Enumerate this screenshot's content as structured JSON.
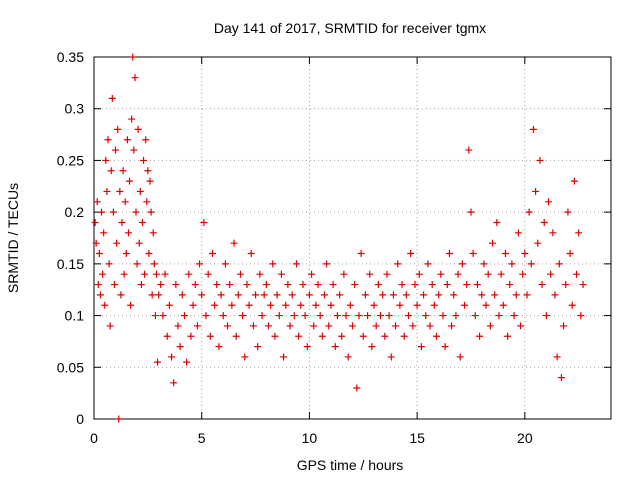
{
  "chart_data": {
    "type": "scatter",
    "title": "Day 141 of 2017, SRMTID for receiver tgmx",
    "xlabel": "GPS time / hours",
    "ylabel": "SRMTID / TECUs",
    "xlim": [
      0,
      24
    ],
    "ylim": [
      0,
      0.35
    ],
    "xticks": [
      0,
      5,
      10,
      15,
      20
    ],
    "xtick_labels": [
      "0",
      "5",
      "10",
      "15",
      "20"
    ],
    "yticks": [
      0,
      0.05,
      0.1,
      0.15,
      0.2,
      0.25,
      0.3,
      0.35
    ],
    "ytick_labels": [
      "0",
      "0.05",
      "0.1",
      "0.15",
      "0.2",
      "0.25",
      "0.3",
      "0.35"
    ],
    "grid": true,
    "marker": "+",
    "color": "#e00000",
    "series": [
      {
        "name": "SRMTID",
        "points": [
          [
            0.05,
            0.19
          ],
          [
            0.1,
            0.17
          ],
          [
            0.15,
            0.21
          ],
          [
            0.2,
            0.13
          ],
          [
            0.25,
            0.16
          ],
          [
            0.3,
            0.12
          ],
          [
            0.35,
            0.2
          ],
          [
            0.4,
            0.14
          ],
          [
            0.45,
            0.18
          ],
          [
            0.5,
            0.11
          ],
          [
            0.55,
            0.25
          ],
          [
            0.6,
            0.22
          ],
          [
            0.65,
            0.27
          ],
          [
            0.7,
            0.15
          ],
          [
            0.75,
            0.09
          ],
          [
            0.8,
            0.24
          ],
          [
            0.85,
            0.31
          ],
          [
            0.9,
            0.2
          ],
          [
            0.95,
            0.13
          ],
          [
            1.0,
            0.26
          ],
          [
            1.05,
            0.17
          ],
          [
            1.1,
            0.28
          ],
          [
            1.15,
            0.0
          ],
          [
            1.2,
            0.22
          ],
          [
            1.25,
            0.12
          ],
          [
            1.3,
            0.19
          ],
          [
            1.35,
            0.24
          ],
          [
            1.4,
            0.14
          ],
          [
            1.45,
            0.21
          ],
          [
            1.5,
            0.16
          ],
          [
            1.55,
            0.27
          ],
          [
            1.6,
            0.18
          ],
          [
            1.65,
            0.23
          ],
          [
            1.7,
            0.11
          ],
          [
            1.75,
            0.29
          ],
          [
            1.8,
            0.35
          ],
          [
            1.85,
            0.26
          ],
          [
            1.9,
            0.33
          ],
          [
            1.95,
            0.2
          ],
          [
            2.0,
            0.15
          ],
          [
            2.05,
            0.28
          ],
          [
            2.1,
            0.17
          ],
          [
            2.15,
            0.22
          ],
          [
            2.2,
            0.13
          ],
          [
            2.25,
            0.19
          ],
          [
            2.3,
            0.25
          ],
          [
            2.35,
            0.14
          ],
          [
            2.4,
            0.27
          ],
          [
            2.45,
            0.21
          ],
          [
            2.5,
            0.24
          ],
          [
            2.55,
            0.16
          ],
          [
            2.6,
            0.23
          ],
          [
            2.65,
            0.2
          ],
          [
            2.7,
            0.12
          ],
          [
            2.75,
            0.18
          ],
          [
            2.8,
            0.15
          ],
          [
            2.85,
            0.1
          ],
          [
            2.9,
            0.14
          ],
          [
            2.95,
            0.055
          ],
          [
            3.0,
            0.12
          ],
          [
            3.1,
            0.13
          ],
          [
            3.2,
            0.1
          ],
          [
            3.3,
            0.14
          ],
          [
            3.4,
            0.08
          ],
          [
            3.5,
            0.11
          ],
          [
            3.6,
            0.06
          ],
          [
            3.7,
            0.035
          ],
          [
            3.8,
            0.13
          ],
          [
            3.9,
            0.09
          ],
          [
            4.0,
            0.07
          ],
          [
            4.1,
            0.12
          ],
          [
            4.2,
            0.1
          ],
          [
            4.3,
            0.055
          ],
          [
            4.4,
            0.14
          ],
          [
            4.5,
            0.08
          ],
          [
            4.6,
            0.11
          ],
          [
            4.7,
            0.13
          ],
          [
            4.8,
            0.09
          ],
          [
            4.9,
            0.15
          ],
          [
            5.0,
            0.12
          ],
          [
            5.1,
            0.19
          ],
          [
            5.2,
            0.1
          ],
          [
            5.3,
            0.14
          ],
          [
            5.4,
            0.08
          ],
          [
            5.5,
            0.16
          ],
          [
            5.6,
            0.11
          ],
          [
            5.7,
            0.13
          ],
          [
            5.8,
            0.07
          ],
          [
            5.9,
            0.12
          ],
          [
            6.0,
            0.1
          ],
          [
            6.1,
            0.15
          ],
          [
            6.2,
            0.09
          ],
          [
            6.3,
            0.13
          ],
          [
            6.4,
            0.11
          ],
          [
            6.5,
            0.17
          ],
          [
            6.6,
            0.08
          ],
          [
            6.7,
            0.12
          ],
          [
            6.8,
            0.14
          ],
          [
            6.9,
            0.1
          ],
          [
            7.0,
            0.06
          ],
          [
            7.1,
            0.13
          ],
          [
            7.2,
            0.11
          ],
          [
            7.3,
            0.16
          ],
          [
            7.4,
            0.09
          ],
          [
            7.5,
            0.12
          ],
          [
            7.6,
            0.07
          ],
          [
            7.7,
            0.14
          ],
          [
            7.8,
            0.1
          ],
          [
            7.9,
            0.12
          ],
          [
            8.0,
            0.13
          ],
          [
            8.1,
            0.09
          ],
          [
            8.2,
            0.11
          ],
          [
            8.3,
            0.15
          ],
          [
            8.4,
            0.08
          ],
          [
            8.5,
            0.12
          ],
          [
            8.6,
            0.1
          ],
          [
            8.7,
            0.14
          ],
          [
            8.8,
            0.06
          ],
          [
            8.9,
            0.11
          ],
          [
            9.0,
            0.13
          ],
          [
            9.1,
            0.09
          ],
          [
            9.2,
            0.12
          ],
          [
            9.3,
            0.1
          ],
          [
            9.4,
            0.15
          ],
          [
            9.5,
            0.08
          ],
          [
            9.6,
            0.11
          ],
          [
            9.7,
            0.13
          ],
          [
            9.8,
            0.1
          ],
          [
            9.9,
            0.07
          ],
          [
            10.0,
            0.12
          ],
          [
            10.1,
            0.14
          ],
          [
            10.2,
            0.09
          ],
          [
            10.3,
            0.11
          ],
          [
            10.4,
            0.13
          ],
          [
            10.5,
            0.1
          ],
          [
            10.6,
            0.08
          ],
          [
            10.7,
            0.12
          ],
          [
            10.8,
            0.15
          ],
          [
            10.9,
            0.09
          ],
          [
            11.0,
            0.11
          ],
          [
            11.1,
            0.13
          ],
          [
            11.2,
            0.07
          ],
          [
            11.3,
            0.1
          ],
          [
            11.4,
            0.12
          ],
          [
            11.5,
            0.08
          ],
          [
            11.6,
            0.14
          ],
          [
            11.7,
            0.1
          ],
          [
            11.8,
            0.06
          ],
          [
            11.9,
            0.11
          ],
          [
            12.0,
            0.09
          ],
          [
            12.1,
            0.13
          ],
          [
            12.2,
            0.03
          ],
          [
            12.3,
            0.1
          ],
          [
            12.4,
            0.16
          ],
          [
            12.5,
            0.08
          ],
          [
            12.6,
            0.12
          ],
          [
            12.7,
            0.1
          ],
          [
            12.8,
            0.14
          ],
          [
            12.9,
            0.07
          ],
          [
            13.0,
            0.11
          ],
          [
            13.1,
            0.09
          ],
          [
            13.2,
            0.13
          ],
          [
            13.3,
            0.1
          ],
          [
            13.4,
            0.12
          ],
          [
            13.5,
            0.08
          ],
          [
            13.6,
            0.14
          ],
          [
            13.7,
            0.1
          ],
          [
            13.8,
            0.06
          ],
          [
            13.9,
            0.12
          ],
          [
            14.0,
            0.09
          ],
          [
            14.1,
            0.15
          ],
          [
            14.2,
            0.11
          ],
          [
            14.3,
            0.13
          ],
          [
            14.4,
            0.08
          ],
          [
            14.5,
            0.12
          ],
          [
            14.6,
            0.1
          ],
          [
            14.7,
            0.16
          ],
          [
            14.8,
            0.09
          ],
          [
            14.9,
            0.13
          ],
          [
            15.0,
            0.11
          ],
          [
            15.1,
            0.14
          ],
          [
            15.2,
            0.07
          ],
          [
            15.3,
            0.12
          ],
          [
            15.4,
            0.1
          ],
          [
            15.5,
            0.15
          ],
          [
            15.6,
            0.09
          ],
          [
            15.7,
            0.13
          ],
          [
            15.8,
            0.11
          ],
          [
            15.9,
            0.08
          ],
          [
            16.0,
            0.12
          ],
          [
            16.1,
            0.14
          ],
          [
            16.2,
            0.1
          ],
          [
            16.3,
            0.07
          ],
          [
            16.4,
            0.13
          ],
          [
            16.5,
            0.16
          ],
          [
            16.6,
            0.09
          ],
          [
            16.7,
            0.12
          ],
          [
            16.8,
            0.1
          ],
          [
            16.9,
            0.14
          ],
          [
            17.0,
            0.06
          ],
          [
            17.1,
            0.15
          ],
          [
            17.2,
            0.11
          ],
          [
            17.3,
            0.13
          ],
          [
            17.4,
            0.26
          ],
          [
            17.5,
            0.2
          ],
          [
            17.6,
            0.16
          ],
          [
            17.7,
            0.1
          ],
          [
            17.8,
            0.13
          ],
          [
            17.9,
            0.08
          ],
          [
            18.0,
            0.12
          ],
          [
            18.1,
            0.15
          ],
          [
            18.2,
            0.11
          ],
          [
            18.3,
            0.14
          ],
          [
            18.4,
            0.09
          ],
          [
            18.5,
            0.17
          ],
          [
            18.6,
            0.12
          ],
          [
            18.7,
            0.19
          ],
          [
            18.8,
            0.1
          ],
          [
            18.9,
            0.14
          ],
          [
            19.0,
            0.11
          ],
          [
            19.1,
            0.16
          ],
          [
            19.2,
            0.08
          ],
          [
            19.3,
            0.13
          ],
          [
            19.4,
            0.15
          ],
          [
            19.5,
            0.1
          ],
          [
            19.6,
            0.12
          ],
          [
            19.7,
            0.18
          ],
          [
            19.8,
            0.09
          ],
          [
            19.9,
            0.14
          ],
          [
            20.0,
            0.16
          ],
          [
            20.1,
            0.12
          ],
          [
            20.2,
            0.2
          ],
          [
            20.3,
            0.15
          ],
          [
            20.4,
            0.28
          ],
          [
            20.5,
            0.22
          ],
          [
            20.6,
            0.17
          ],
          [
            20.7,
            0.25
          ],
          [
            20.8,
            0.13
          ],
          [
            20.9,
            0.19
          ],
          [
            21.0,
            0.1
          ],
          [
            21.1,
            0.21
          ],
          [
            21.2,
            0.14
          ],
          [
            21.3,
            0.18
          ],
          [
            21.4,
            0.12
          ],
          [
            21.5,
            0.06
          ],
          [
            21.6,
            0.15
          ],
          [
            21.7,
            0.04
          ],
          [
            21.8,
            0.09
          ],
          [
            21.9,
            0.13
          ],
          [
            22.0,
            0.2
          ],
          [
            22.1,
            0.16
          ],
          [
            22.2,
            0.11
          ],
          [
            22.3,
            0.23
          ],
          [
            22.4,
            0.14
          ],
          [
            22.5,
            0.18
          ],
          [
            22.6,
            0.1
          ],
          [
            22.7,
            0.13
          ]
        ]
      }
    ]
  }
}
